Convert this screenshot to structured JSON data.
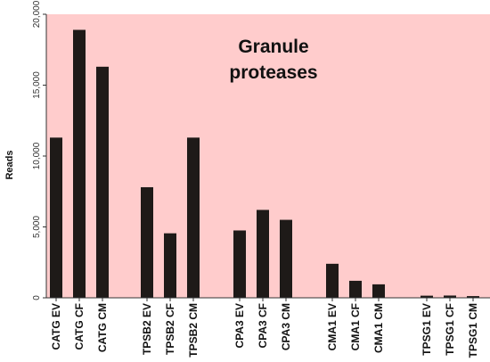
{
  "chart_data": {
    "type": "bar",
    "title_lines": [
      "Granule",
      "proteases"
    ],
    "xlabel": "",
    "ylabel": "Reads",
    "ylim": [
      0,
      20000
    ],
    "yticks": [
      0,
      5000,
      10000,
      15000,
      20000
    ],
    "ytick_labels": [
      "0",
      "5,000",
      "10,000",
      "15,000",
      "20,000"
    ],
    "grid": false,
    "legend": "none",
    "groups": [
      {
        "categories": [
          "CATG EV",
          "CATG CF",
          "CATG CM"
        ],
        "values": [
          11300,
          18900,
          16300
        ]
      },
      {
        "categories": [
          "TPSB2 EV",
          "TPSB2 CF",
          "TPSB2 CM"
        ],
        "values": [
          7800,
          4550,
          11300
        ]
      },
      {
        "categories": [
          "CPA3 EV",
          "CPA3 CF",
          "CPA3 CM"
        ],
        "values": [
          4750,
          6200,
          5500
        ]
      },
      {
        "categories": [
          "CMA1 EV",
          "CMA1 CF",
          "CMA1 CM"
        ],
        "values": [
          2400,
          1200,
          950
        ]
      },
      {
        "categories": [
          "TPSG1 EV",
          "TPSG1 CF",
          "TPSG1 CM"
        ],
        "values": [
          150,
          160,
          120
        ]
      }
    ],
    "colors": {
      "plot_background": "#ffcccc",
      "bar": "#1e1a18",
      "axis": "#333333"
    }
  }
}
